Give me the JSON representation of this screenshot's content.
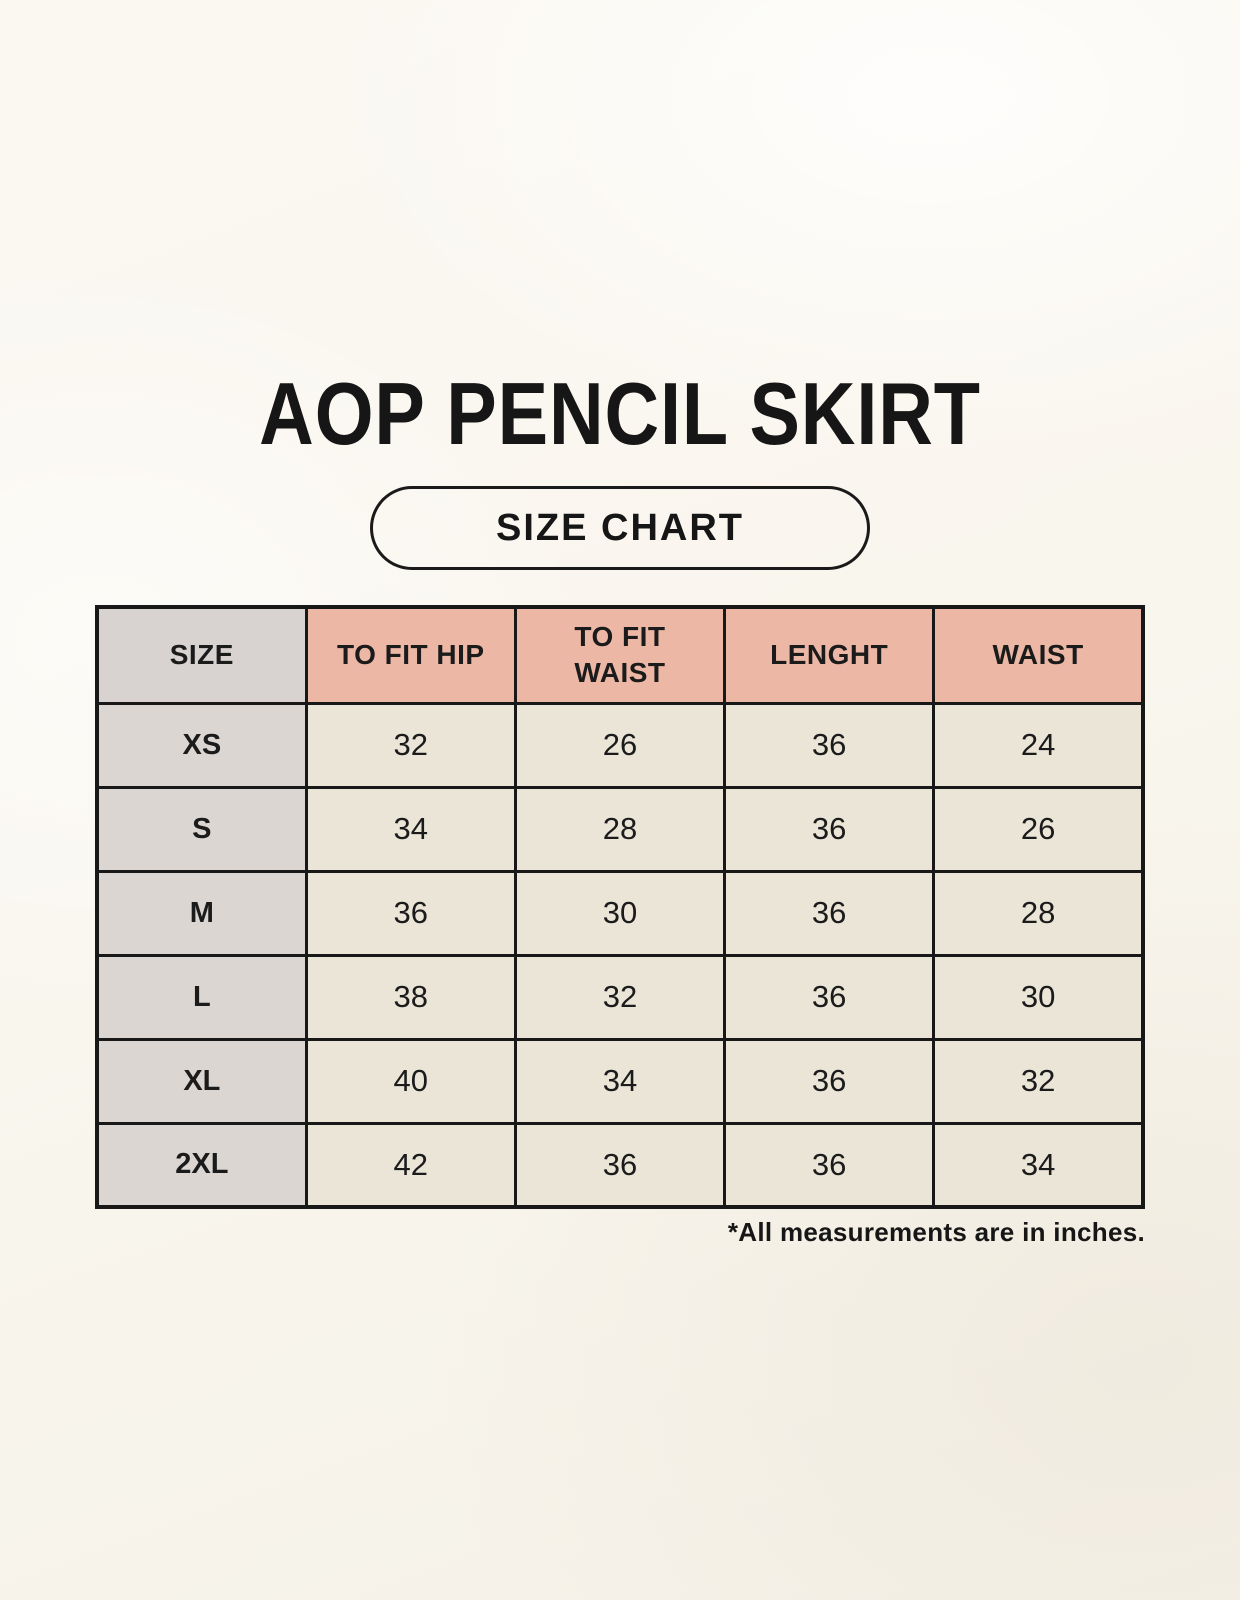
{
  "page": {
    "title": "AOP PENCIL SKIRT",
    "badge": "SIZE CHART",
    "footnote": "*All measurements are in inches."
  },
  "chart_data": {
    "type": "table",
    "title": "AOP PENCIL SKIRT",
    "subtitle": "SIZE CHART",
    "columns": [
      "SIZE",
      "TO FIT HIP",
      "TO FIT WAIST",
      "LENGHT",
      "WAIST"
    ],
    "rows": [
      {
        "size": "XS",
        "values": [
          "32",
          "26",
          "36",
          "24"
        ]
      },
      {
        "size": "S",
        "values": [
          "34",
          "28",
          "36",
          "26"
        ]
      },
      {
        "size": "M",
        "values": [
          "36",
          "30",
          "36",
          "28"
        ]
      },
      {
        "size": "L",
        "values": [
          "38",
          "32",
          "36",
          "30"
        ]
      },
      {
        "size": "XL",
        "values": [
          "40",
          "34",
          "36",
          "32"
        ]
      },
      {
        "size": "2XL",
        "values": [
          "42",
          "36",
          "36",
          "34"
        ]
      }
    ],
    "note": "*All measurements are in inches.",
    "units": "inches"
  },
  "colors": {
    "background": "#f9f6ee",
    "header_accent": "#edb7a5",
    "header_size_cell": "#d8d3d0",
    "size_column_cell": "#dcd6d2",
    "data_cell": "#ebe5d8",
    "table_border": "#181818",
    "text": "#1b1b1b"
  }
}
